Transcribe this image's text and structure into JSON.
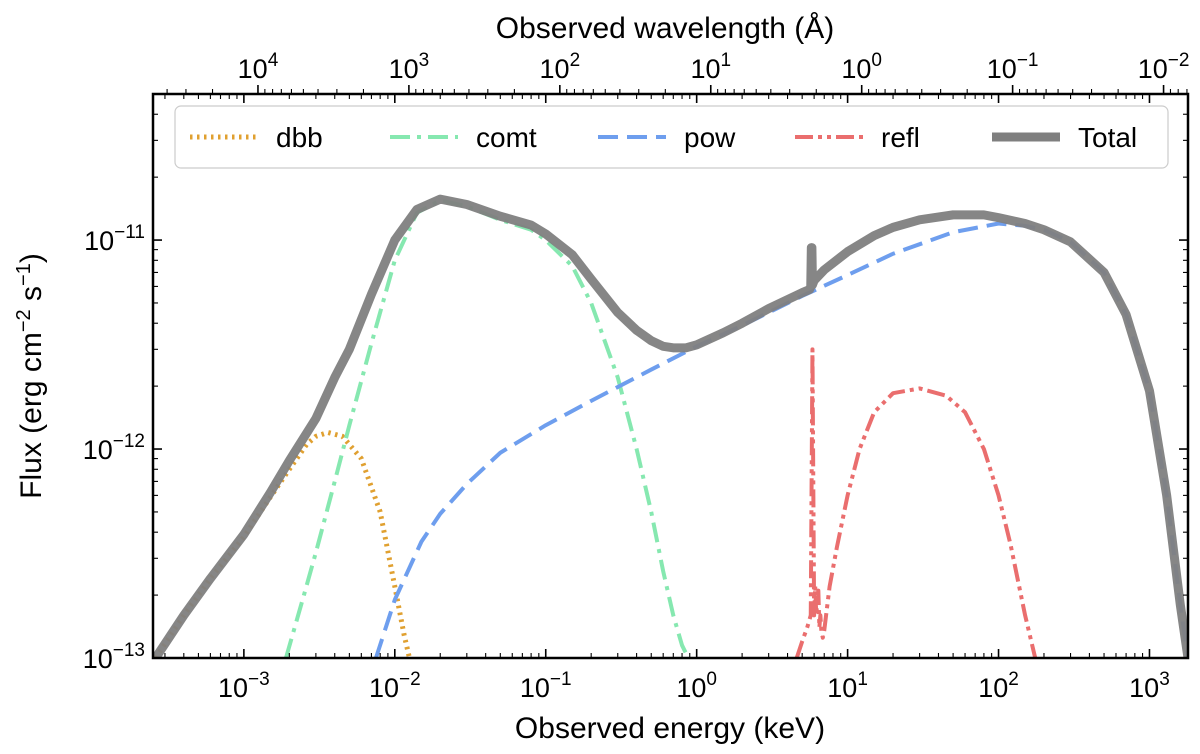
{
  "chart_data": {
    "type": "line",
    "title": "",
    "xlabel": "Observed energy (keV)",
    "ylabel": "Flux (erg cm$^{-2}$ s$^{-1}$)",
    "ylabel_parts": {
      "a": "Flux (erg cm",
      "b": "−2",
      "c": " s",
      "d": "−1",
      "e": ")"
    },
    "top_xlabel": "Observed wavelength (Å)",
    "xscale": "log",
    "yscale": "log",
    "xlim": [
      0.00025,
      1800
    ],
    "ylim": [
      1e-13,
      5e-11
    ],
    "grid": false,
    "legend_position": "top",
    "x_ticks": [
      {
        "v": 0.001,
        "b": "10",
        "e": "−3"
      },
      {
        "v": 0.01,
        "b": "10",
        "e": "−2"
      },
      {
        "v": 0.1,
        "b": "10",
        "e": "−1"
      },
      {
        "v": 1,
        "b": "10",
        "e": "0"
      },
      {
        "v": 10,
        "b": "10",
        "e": "1"
      },
      {
        "v": 100,
        "b": "10",
        "e": "2"
      },
      {
        "v": 1000,
        "b": "10",
        "e": "3"
      }
    ],
    "y_ticks": [
      {
        "v": 1e-13,
        "b": "10",
        "e": "−13"
      },
      {
        "v": 1e-12,
        "b": "10",
        "e": "−12"
      },
      {
        "v": 1e-11,
        "b": "10",
        "e": "−11"
      }
    ],
    "top_ticks": [
      {
        "v": 10000,
        "b": "10",
        "e": "4"
      },
      {
        "v": 1000,
        "b": "10",
        "e": "3"
      },
      {
        "v": 100,
        "b": "10",
        "e": "2"
      },
      {
        "v": 10,
        "b": "10",
        "e": "1"
      },
      {
        "v": 1,
        "b": "10",
        "e": "0"
      },
      {
        "v": 0.1,
        "b": "10",
        "e": "−1"
      },
      {
        "v": 0.01,
        "b": "10",
        "e": "−2"
      }
    ],
    "series": [
      {
        "name": "dbb",
        "color": "#e0a030",
        "dash": "dotted",
        "x": [
          0.00026,
          0.0004,
          0.0006,
          0.001,
          0.0015,
          0.002,
          0.0026,
          0.003,
          0.0036,
          0.0045,
          0.006,
          0.008,
          0.01,
          0.0115,
          0.0125
        ],
        "y": [
          1e-13,
          1.6e-13,
          2.4e-13,
          3.8e-13,
          5.9e-13,
          8e-13,
          1.05e-12,
          1.15e-12,
          1.2e-12,
          1.15e-12,
          9e-13,
          5e-13,
          2.2e-13,
          1.3e-13,
          1e-13
        ]
      },
      {
        "name": "comt",
        "color": "#86e8b0",
        "dash": "dashdot",
        "x": [
          0.0019,
          0.0025,
          0.003,
          0.004,
          0.005,
          0.007,
          0.01,
          0.014,
          0.02,
          0.03,
          0.05,
          0.08,
          0.1,
          0.15,
          0.2,
          0.3,
          0.4,
          0.5,
          0.6,
          0.7,
          0.8,
          0.88
        ],
        "y": [
          1e-13,
          2e-13,
          3.2e-13,
          7e-13,
          1.3e-12,
          3.2e-12,
          8e-12,
          1.35e-11,
          1.55e-11,
          1.45e-11,
          1.25e-11,
          1.12e-11,
          1e-11,
          7.5e-12,
          5e-12,
          2.2e-12,
          1e-12,
          5e-13,
          2.6e-13,
          1.6e-13,
          1.15e-13,
          1e-13
        ]
      },
      {
        "name": "pow",
        "color": "#6e9eee",
        "dash": "dashed",
        "x": [
          0.0075,
          0.01,
          0.015,
          0.02,
          0.03,
          0.05,
          0.1,
          0.2,
          0.5,
          1,
          2,
          5,
          10,
          20,
          50,
          100,
          150,
          200,
          300,
          500,
          700,
          1000,
          1300,
          1600,
          1800
        ],
        "y": [
          1e-13,
          1.9e-13,
          3.6e-13,
          4.9e-13,
          6.8e-13,
          9.6e-13,
          1.3e-12,
          1.7e-12,
          2.4e-12,
          3.1e-12,
          3.9e-12,
          5.4e-12,
          6.8e-12,
          8.6e-12,
          1.09e-11,
          1.2e-11,
          1.17e-11,
          1.12e-11,
          9.8e-12,
          7e-12,
          4.4e-12,
          1.9e-12,
          6e-13,
          1.8e-13,
          1e-13
        ]
      },
      {
        "name": "refl",
        "color": "#ea6e6e",
        "dash": "dashdotdot",
        "x": [
          4.6,
          5.0,
          5.4,
          5.7,
          5.85,
          6.0,
          6.1,
          6.2,
          6.3,
          6.4,
          6.5,
          6.6,
          6.7,
          6.85,
          7.0,
          7.2,
          7.6,
          8.5,
          10,
          12,
          15,
          20,
          30,
          45,
          60,
          80,
          100,
          120,
          150,
          175
        ],
        "y": [
          1e-13,
          1.2e-13,
          1.4e-13,
          1.6e-13,
          3e-12,
          1.6e-13,
          2.2e-13,
          1.6e-13,
          1.9e-13,
          2.1e-13,
          1.4e-13,
          1.6e-13,
          1.35e-13,
          1.25e-13,
          1.35e-13,
          1.6e-13,
          2.2e-13,
          3.4e-13,
          6e-13,
          1e-12,
          1.5e-12,
          1.85e-12,
          1.95e-12,
          1.8e-12,
          1.5e-12,
          1e-12,
          6e-13,
          3.5e-13,
          1.6e-13,
          1e-13
        ]
      },
      {
        "name": "Total",
        "color": "#7f7f7f",
        "dash": "solid",
        "x": [
          0.00026,
          0.0004,
          0.0006,
          0.001,
          0.0015,
          0.002,
          0.003,
          0.004,
          0.005,
          0.007,
          0.01,
          0.014,
          0.02,
          0.03,
          0.05,
          0.08,
          0.1,
          0.15,
          0.2,
          0.3,
          0.4,
          0.5,
          0.6,
          0.7,
          0.85,
          1.0,
          1.5,
          2,
          3,
          5,
          5.6,
          5.7,
          5.75,
          5.8,
          5.85,
          6.0,
          7,
          10,
          15,
          20,
          30,
          50,
          80,
          100,
          150,
          200,
          300,
          500,
          700,
          1000,
          1300,
          1600,
          1800
        ],
        "y": [
          1e-13,
          1.6e-13,
          2.4e-13,
          3.9e-13,
          6.2e-13,
          8.8e-13,
          1.4e-12,
          2.2e-12,
          3e-12,
          5.5e-12,
          1e-11,
          1.4e-11,
          1.57e-11,
          1.48e-11,
          1.3e-11,
          1.18e-11,
          1.07e-11,
          8.5e-12,
          6.5e-12,
          4.5e-12,
          3.7e-12,
          3.3e-12,
          3.1e-12,
          3.05e-12,
          3.05e-12,
          3.15e-12,
          3.6e-12,
          4e-12,
          4.7e-12,
          5.6e-12,
          5.8e-12,
          6e-12,
          9.2e-12,
          9.2e-12,
          6.1e-12,
          6.4e-12,
          7.2e-12,
          8.8e-12,
          1.05e-11,
          1.15e-11,
          1.25e-11,
          1.32e-11,
          1.32e-11,
          1.28e-11,
          1.2e-11,
          1.12e-11,
          9.8e-12,
          7e-12,
          4.4e-12,
          1.9e-12,
          6e-13,
          1.8e-13,
          1e-13
        ]
      }
    ]
  }
}
